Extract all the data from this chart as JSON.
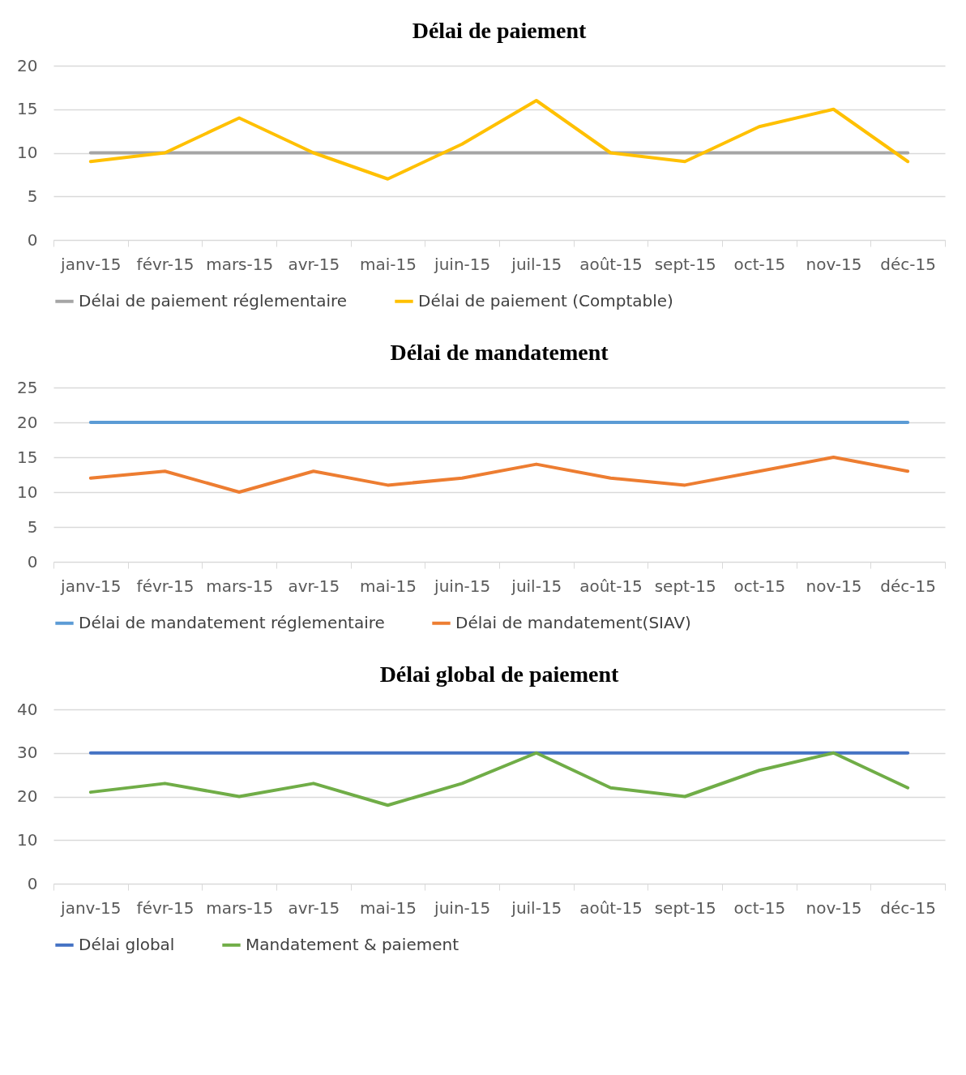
{
  "chart_data": [
    {
      "type": "line",
      "title": "Délai de paiement",
      "categories": [
        "janv-15",
        "févr-15",
        "mars-15",
        "avr-15",
        "mai-15",
        "juin-15",
        "juil-15",
        "août-15",
        "sept-15",
        "oct-15",
        "nov-15",
        "déc-15"
      ],
      "series": [
        {
          "name": "Délai de paiement réglementaire",
          "color": "#a5a5a5",
          "values": [
            10,
            10,
            10,
            10,
            10,
            10,
            10,
            10,
            10,
            10,
            10,
            10
          ]
        },
        {
          "name": "Délai de paiement (Comptable)",
          "color": "#ffc000",
          "values": [
            9,
            10,
            14,
            10,
            7,
            11,
            16,
            10,
            9,
            13,
            15,
            9
          ]
        }
      ],
      "ylim": [
        0,
        20
      ],
      "yticks": [
        0,
        5,
        10,
        15,
        20
      ],
      "grid": "y",
      "legend": "bottom",
      "marker": "none",
      "line_style": "solid"
    },
    {
      "type": "line",
      "title": "Délai de mandatement",
      "categories": [
        "janv-15",
        "févr-15",
        "mars-15",
        "avr-15",
        "mai-15",
        "juin-15",
        "juil-15",
        "août-15",
        "sept-15",
        "oct-15",
        "nov-15",
        "déc-15"
      ],
      "series": [
        {
          "name": "Délai de mandatement réglementaire",
          "color": "#5b9bd5",
          "values": [
            20,
            20,
            20,
            20,
            20,
            20,
            20,
            20,
            20,
            20,
            20,
            20
          ]
        },
        {
          "name": "Délai de mandatement(SIAV)",
          "color": "#ed7d31",
          "values": [
            12,
            13,
            10,
            13,
            11,
            12,
            14,
            12,
            11,
            13,
            15,
            13
          ]
        }
      ],
      "ylim": [
        0,
        25
      ],
      "yticks": [
        0,
        5,
        10,
        15,
        20,
        25
      ],
      "grid": "y",
      "legend": "bottom",
      "marker": "none",
      "line_style": "solid"
    },
    {
      "type": "line",
      "title": "Délai global de paiement",
      "categories": [
        "janv-15",
        "févr-15",
        "mars-15",
        "avr-15",
        "mai-15",
        "juin-15",
        "juil-15",
        "août-15",
        "sept-15",
        "oct-15",
        "nov-15",
        "déc-15"
      ],
      "series": [
        {
          "name": "Délai global",
          "color": "#4472c4",
          "values": [
            30,
            30,
            30,
            30,
            30,
            30,
            30,
            30,
            30,
            30,
            30,
            30
          ]
        },
        {
          "name": "Mandatement & paiement",
          "color": "#70ad47",
          "values": [
            21,
            23,
            20,
            23,
            18,
            23,
            30,
            22,
            20,
            26,
            30,
            22
          ]
        }
      ],
      "ylim": [
        0,
        40
      ],
      "yticks": [
        0,
        10,
        20,
        30,
        40
      ],
      "grid": "y",
      "legend": "bottom",
      "marker": "none",
      "line_style": "solid"
    }
  ]
}
